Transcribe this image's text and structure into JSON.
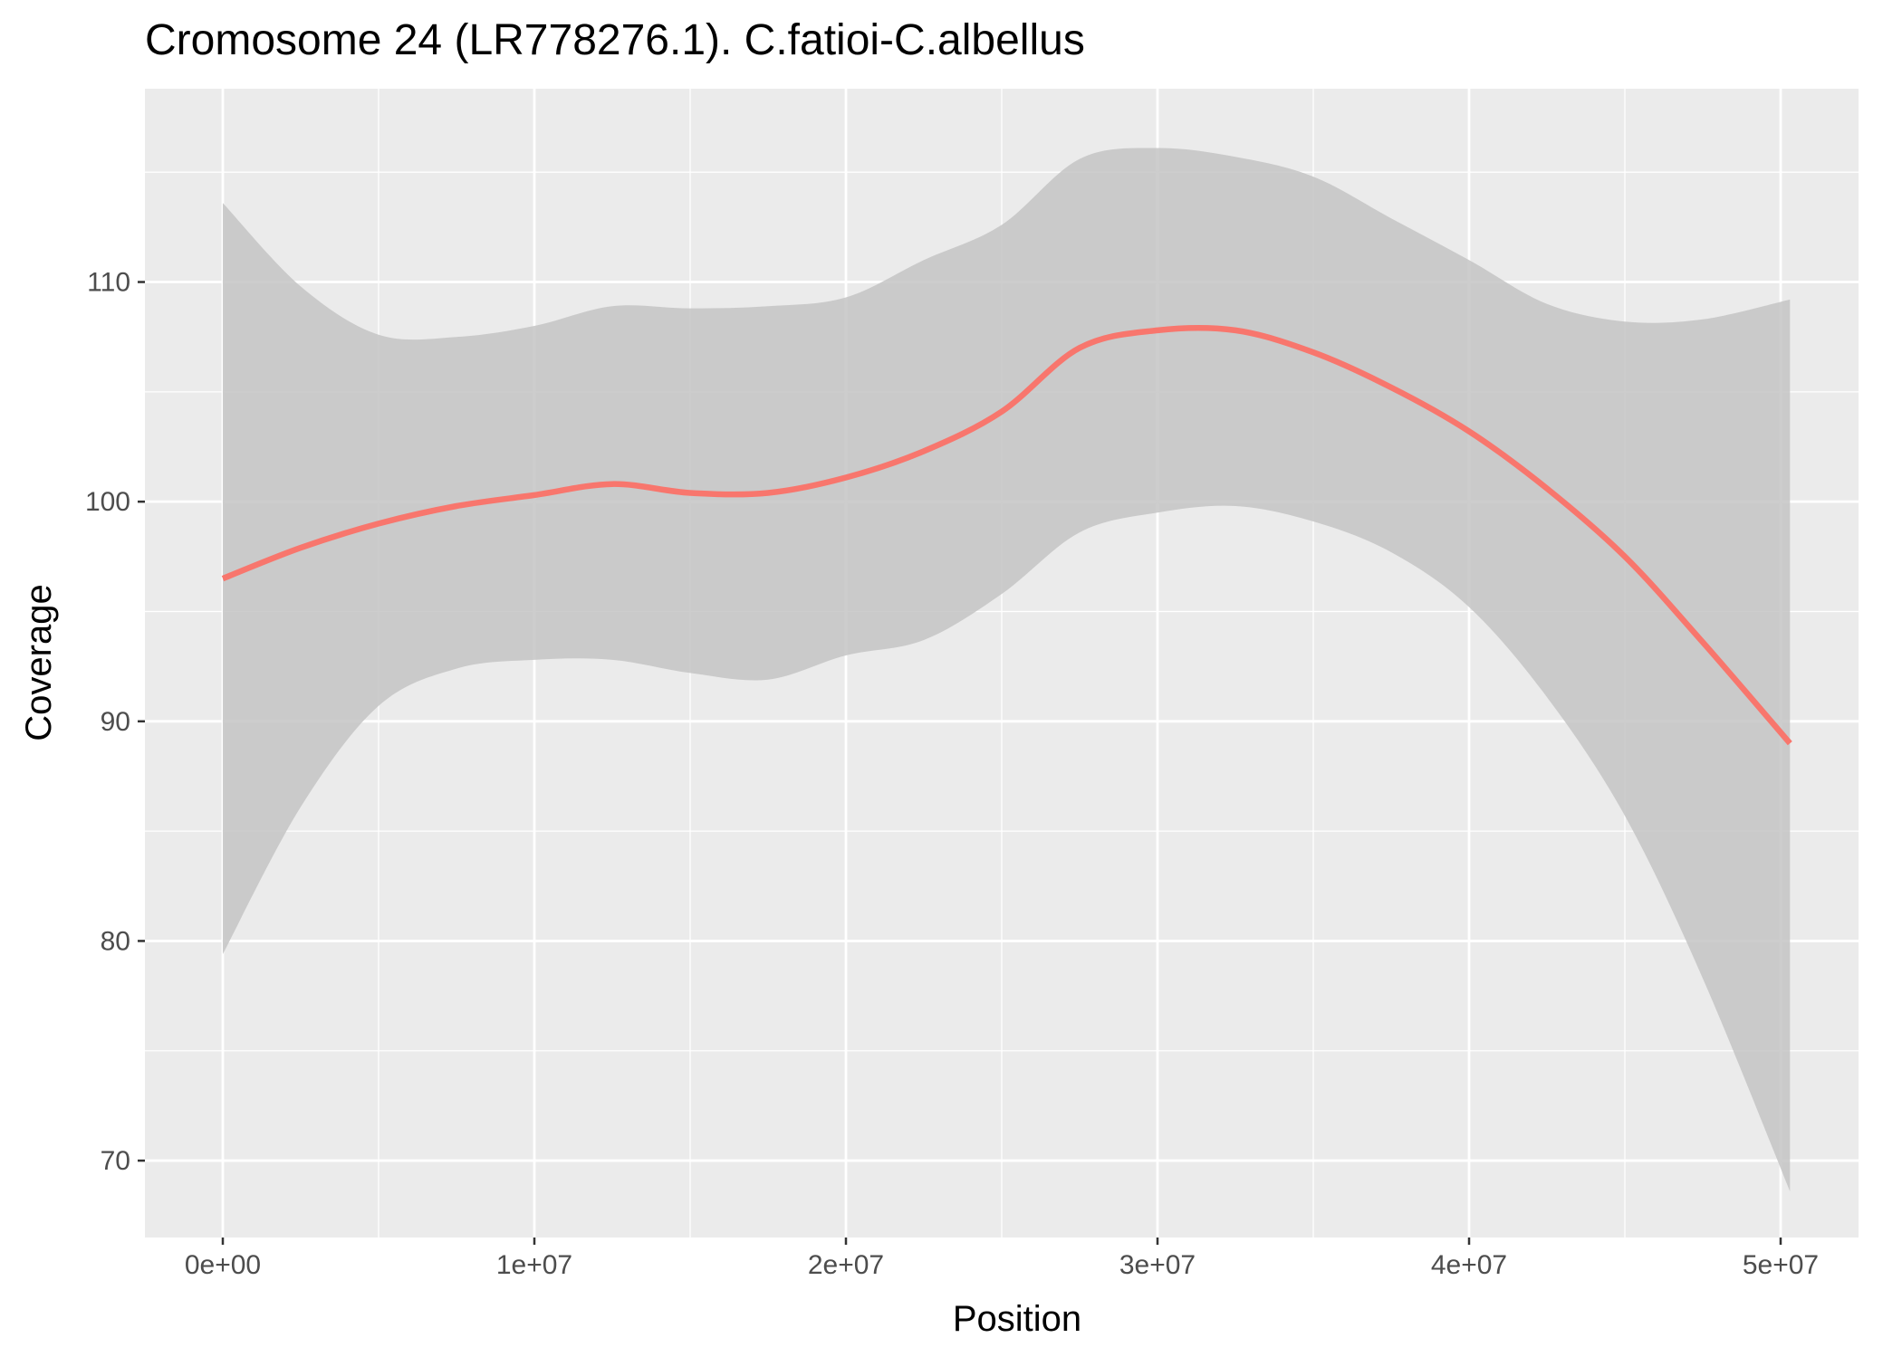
{
  "chart_data": {
    "type": "line",
    "title": "Cromosome 24 (LR778276.1). C.fatioi-C.albellus",
    "xlabel": "Position",
    "ylabel": "Coverage",
    "xlim": [
      -2500000,
      52500000
    ],
    "ylim": [
      66.5,
      118.8
    ],
    "x_ticks": [
      {
        "value": 0,
        "label": "0e+00"
      },
      {
        "value": 10000000,
        "label": "1e+07"
      },
      {
        "value": 20000000,
        "label": "2e+07"
      },
      {
        "value": 30000000,
        "label": "3e+07"
      },
      {
        "value": 40000000,
        "label": "4e+07"
      },
      {
        "value": 50000000,
        "label": "5e+07"
      }
    ],
    "y_ticks": [
      {
        "value": 70,
        "label": "70"
      },
      {
        "value": 80,
        "label": "80"
      },
      {
        "value": 90,
        "label": "90"
      },
      {
        "value": 100,
        "label": "100"
      },
      {
        "value": 110,
        "label": "110"
      }
    ],
    "x_minor": [
      5000000,
      15000000,
      25000000,
      35000000,
      45000000
    ],
    "y_minor": [
      75,
      85,
      95,
      105,
      115
    ],
    "grid": true,
    "colors": {
      "panel": "#ebebeb",
      "grid": "#ffffff",
      "line": "#f8766d",
      "ribbon": "#c4c4c4"
    },
    "series": [
      {
        "x": [
          0,
          2500000,
          5000000,
          7500000,
          10000000,
          12500000,
          15000000,
          17500000,
          20000000,
          22500000,
          25000000,
          27500000,
          30000000,
          32500000,
          35000000,
          37500000,
          40000000,
          42500000,
          45000000,
          47500000,
          50300000
        ],
        "y": [
          96.5,
          97.9,
          99.0,
          99.8,
          100.3,
          100.8,
          100.4,
          100.4,
          101.1,
          102.3,
          104.1,
          107.0,
          107.8,
          107.8,
          106.8,
          105.2,
          103.2,
          100.6,
          97.5,
          93.6,
          89.0
        ],
        "lower": [
          79.4,
          86.1,
          90.7,
          92.4,
          92.8,
          92.8,
          92.2,
          91.9,
          93.0,
          93.7,
          95.8,
          98.6,
          99.5,
          99.8,
          99.1,
          97.7,
          95.2,
          91.1,
          85.7,
          78.3,
          68.6
        ],
        "upper": [
          113.6,
          109.8,
          107.6,
          107.5,
          108.0,
          108.9,
          108.8,
          108.9,
          109.3,
          111.0,
          112.6,
          115.6,
          116.1,
          115.7,
          114.8,
          112.9,
          111.0,
          109.0,
          108.2,
          108.3,
          109.2
        ]
      }
    ]
  }
}
